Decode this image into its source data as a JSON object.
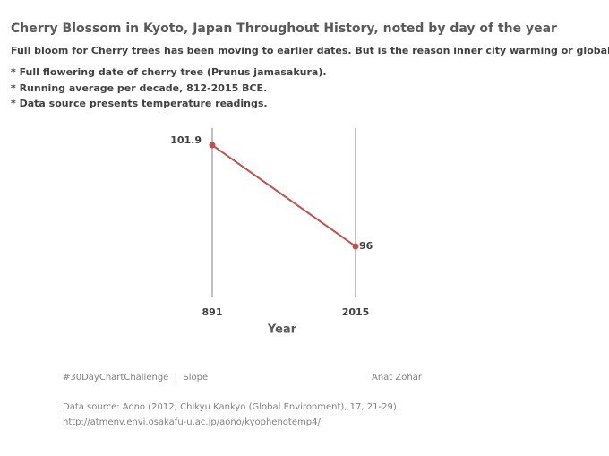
{
  "title": "Cherry Blossom in Kyoto, Japan Throughout History, noted by day of the year",
  "subtitle": "Full bloom for Cherry trees has been moving to earlier dates. But is the reason inner city warming or global warming?",
  "notes": [
    "* Full flowering date of cherry tree (Prunus jamasakura).",
    "* Running average per decade,  812-2015 BCE.",
    "* Data source presents temperature readings."
  ],
  "chart_data": {
    "type": "slope",
    "categories": [
      "891",
      "2015"
    ],
    "values": [
      101.9,
      96
    ],
    "color": "#c0504d",
    "x_label": "Year"
  },
  "footer": {
    "tag": "#30DayChartChallenge  |  Slope",
    "author": "Anat Zohar",
    "source": [
      "Data source: Aono (2012; Chikyu Kankyo (Global Environment), 17, 21-29)",
      "http://atmenv.envi.osakafu-u.ac.jp/aono/kyophenotemp4/"
    ]
  }
}
